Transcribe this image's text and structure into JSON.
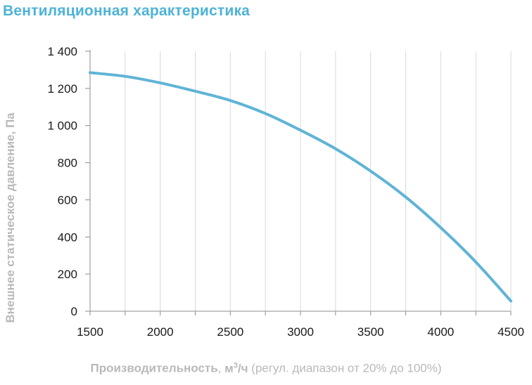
{
  "chart_data": {
    "type": "line",
    "title": "Вентиляционная характеристика",
    "ylabel": "Внешнее статическое давление, Па",
    "xlabel": {
      "main": "Производительность",
      "sep": ", ",
      "unit_base": "м",
      "unit_exp": "3",
      "unit_tail": "/ч",
      "note": " (регул. диапазон от 20% до 100%)"
    },
    "xlim": [
      1500,
      4500
    ],
    "ylim": [
      0,
      1400
    ],
    "x_ticks": [
      1500,
      2000,
      2500,
      3000,
      3500,
      4000,
      4500
    ],
    "x_tick_labels": [
      "1500",
      "2000",
      "2500",
      "3000",
      "3500",
      "4000",
      "4500"
    ],
    "y_ticks": [
      0,
      200,
      400,
      600,
      800,
      1000,
      1200,
      1400
    ],
    "y_tick_labels": [
      "0",
      "200",
      "400",
      "600",
      "800",
      "1 000",
      "1 200",
      "1 400"
    ],
    "grid": "vertical",
    "color": "#5fb4d6",
    "series": [
      {
        "x": [
          1500,
          1750,
          2000,
          2250,
          2500,
          2750,
          3000,
          3250,
          3500,
          3750,
          4000,
          4250,
          4500
        ],
        "y": [
          1285,
          1265,
          1230,
          1185,
          1135,
          1065,
          975,
          875,
          755,
          615,
          450,
          265,
          55
        ]
      }
    ]
  }
}
